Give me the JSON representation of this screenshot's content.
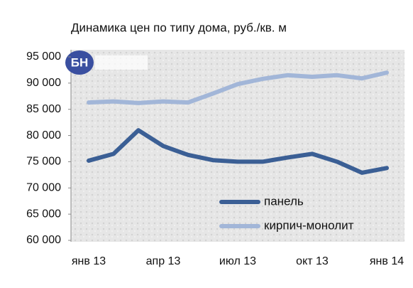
{
  "chart_data": {
    "type": "line",
    "title": "Динамика цен по типу дома, руб./кв. м",
    "logo": "БН",
    "categories": [
      "янв 13",
      null,
      null,
      "апр 13",
      null,
      null,
      "июл 13",
      null,
      null,
      "окт 13",
      null,
      null,
      "янв 14"
    ],
    "series": [
      {
        "name": "панель",
        "color": "#3b5f95",
        "values": [
          75200,
          76500,
          81000,
          78000,
          76300,
          75300,
          75000,
          75000,
          75800,
          76500,
          75000,
          72900,
          73800
        ]
      },
      {
        "name": "кирпич-монолит",
        "color": "#a2b6d8",
        "values": [
          86300,
          86500,
          86200,
          86500,
          86300,
          88000,
          89800,
          90800,
          91500,
          91200,
          91500,
          90900,
          92000
        ]
      }
    ],
    "ylim": [
      60000,
      95000
    ],
    "yticks": [
      {
        "value": 60000,
        "label": "60 000"
      },
      {
        "value": 65000,
        "label": "65 000"
      },
      {
        "value": 70000,
        "label": "70 000"
      },
      {
        "value": 75000,
        "label": "75 000"
      },
      {
        "value": 80000,
        "label": "80 000"
      },
      {
        "value": 85000,
        "label": "85 000"
      },
      {
        "value": 90000,
        "label": "90 000"
      },
      {
        "value": 95000,
        "label": "95 000"
      }
    ],
    "grid": false,
    "legend": "right"
  }
}
